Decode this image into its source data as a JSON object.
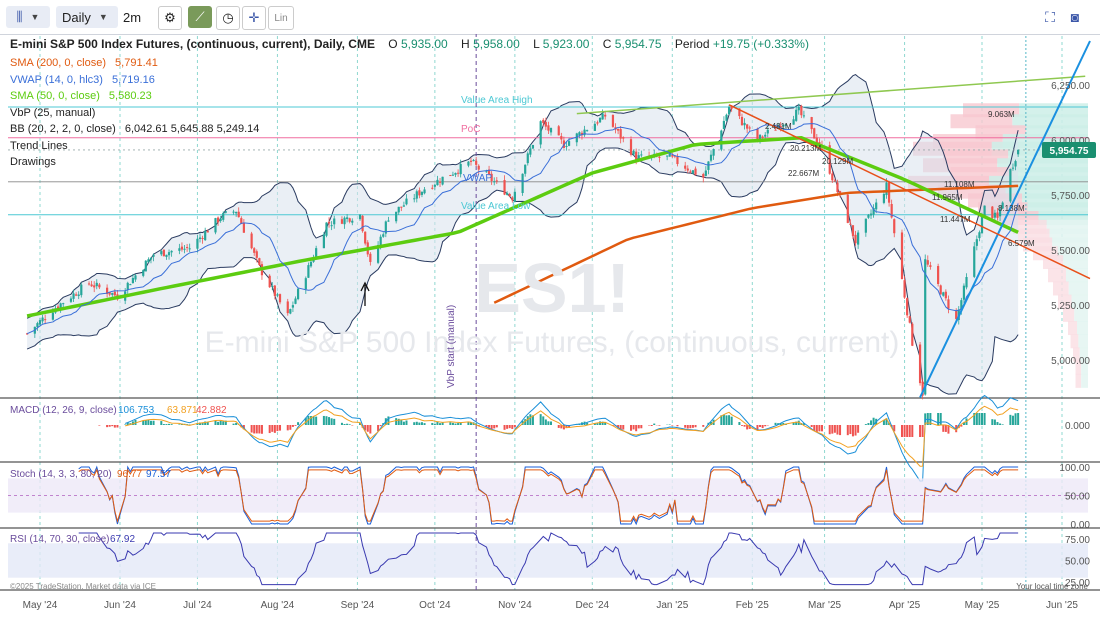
{
  "toolbar": {
    "period": "Daily",
    "interval": "2m",
    "lin_label": "Lin"
  },
  "header": {
    "title": "E-mini S&P 500 Index Futures, (continuous, current), Daily, CME",
    "open_label": "O",
    "open": "5,935.00",
    "high_label": "H",
    "high": "5,958.00",
    "low_label": "L",
    "low": "5,923.00",
    "close_label": "C",
    "close": "5,954.75",
    "period_label": "Period",
    "change": "+19.75 (+0.333%)"
  },
  "legend": [
    {
      "label": "SMA (200, 0, close)",
      "value": "5,791.41",
      "color": "#e05a10"
    },
    {
      "label": "VWAP (14, 0, hlc3)",
      "value": "5,719.16",
      "color": "#3a6fd8"
    },
    {
      "label": "SMA (50, 0, close)",
      "value": "5,580.23",
      "color": "#5ccc10"
    },
    {
      "label": "VbP (25, manual)",
      "value": "",
      "color": "#222222"
    },
    {
      "label": "BB (20, 2, 2, 0, close)",
      "value": "6,042.61 5,645.88 5,249.14",
      "color": "#222222"
    },
    {
      "label": "Trend Lines",
      "value": "",
      "color": "#222222"
    },
    {
      "label": "Drawings",
      "value": "",
      "color": "#222222"
    }
  ],
  "watermark": {
    "symbol": "ES1!",
    "name": "E-mini S&P 500 Index Futures, (continuous, current)"
  },
  "annotations": {
    "value_area_high": "Value Area High",
    "poc": "PoC",
    "value_area_low": "Value Area Low",
    "vbp_start": "VbP start (manual)",
    "vwap_short": "VWAP"
  },
  "vbp_labels": [
    "9.063M",
    "20.213M",
    "20.129M",
    "22.667M",
    "11.108M",
    "11.965M",
    "8.138M",
    "11.447M",
    "6.579M",
    "2.481M"
  ],
  "price_axis": {
    "ticks": [
      "6,250.00",
      "6,000.00",
      "5,750.00",
      "5,500.00",
      "5,250.00",
      "5,000.00"
    ],
    "current": "5,954.75"
  },
  "x_axis": {
    "ticks": [
      "May '24",
      "Jun '24",
      "Jul '24",
      "Aug '24",
      "Sep '24",
      "Oct '24",
      "Nov '24",
      "Dec '24",
      "Jan '25",
      "Feb '25",
      "Mar '25",
      "Apr '25",
      "May '25",
      "Jun '25"
    ]
  },
  "panels": {
    "macd": {
      "label": "MACD (12, 26, 9, close)",
      "values": [
        "106.753",
        "63.871",
        "42.882"
      ],
      "colors": [
        "#1a8fd8",
        "#f2a020",
        "#ef5350"
      ],
      "ticks": [
        "0.000"
      ]
    },
    "stoch": {
      "label": "Stoch (14, 3, 3, 80, 20)",
      "values": [
        "96.77",
        "97.57"
      ],
      "colors": [
        "#1a5fd8",
        "#e05a10"
      ],
      "ticks": [
        "100.00",
        "50.00",
        "0.00"
      ]
    },
    "rsi": {
      "label": "RSI (14, 70, 30, close)",
      "value": "67.92",
      "color": "#3a3ab0",
      "ticks": [
        "75.00",
        "50.00",
        "25.00"
      ]
    }
  },
  "footer": {
    "copyright": "©2025 TradeStation. Market data via ICE",
    "local_time": "Your local time zone"
  },
  "colors": {
    "up": "#26a69a",
    "down": "#ef5350",
    "sma200": "#e05a10",
    "sma50": "#5ccc10",
    "vwap": "#3a6fd8",
    "bb": "#2a3b60",
    "value_area": "#4cc8d4",
    "poc": "#f06ea0",
    "trend_long": "#8fc850",
    "trend_up": "#1a90e0",
    "trend_down": "#e8501a"
  },
  "chart_data": {
    "type": "candlestick",
    "symbol": "ES1!",
    "timeframe": "Daily",
    "y_range": [
      4800,
      6400
    ],
    "x_range": [
      "2024-04-25",
      "2025-06-10"
    ],
    "last": {
      "open": 5935.0,
      "high": 5958.0,
      "low": 5923.0,
      "close": 5954.75,
      "change": 19.75,
      "change_pct": 0.333
    },
    "close_path": [
      [
        "2024-04-26",
        5120
      ],
      [
        "2024-05-06",
        5230
      ],
      [
        "2024-05-20",
        5350
      ],
      [
        "2024-05-31",
        5290
      ],
      [
        "2024-06-14",
        5480
      ],
      [
        "2024-06-28",
        5510
      ],
      [
        "2024-07-10",
        5650
      ],
      [
        "2024-07-16",
        5680
      ],
      [
        "2024-07-25",
        5420
      ],
      [
        "2024-08-05",
        5200
      ],
      [
        "2024-08-12",
        5390
      ],
      [
        "2024-08-20",
        5620
      ],
      [
        "2024-09-02",
        5660
      ],
      [
        "2024-09-06",
        5430
      ],
      [
        "2024-09-13",
        5650
      ],
      [
        "2024-09-27",
        5780
      ],
      [
        "2024-10-15",
        5900
      ],
      [
        "2024-10-31",
        5740
      ],
      [
        "2024-11-11",
        6080
      ],
      [
        "2024-11-20",
        5980
      ],
      [
        "2024-12-06",
        6110
      ],
      [
        "2024-12-18",
        5920
      ],
      [
        "2024-12-31",
        5920
      ],
      [
        "2025-01-13",
        5830
      ],
      [
        "2025-01-23",
        6150
      ],
      [
        "2025-02-03",
        6000
      ],
      [
        "2025-02-19",
        6130
      ],
      [
        "2025-02-28",
        5960
      ],
      [
        "2025-03-13",
        5540
      ],
      [
        "2025-03-25",
        5790
      ],
      [
        "2025-04-04",
        5080
      ],
      [
        "2025-04-08",
        4850
      ],
      [
        "2025-04-09",
        5450
      ],
      [
        "2025-04-21",
        5180
      ],
      [
        "2025-05-02",
        5690
      ],
      [
        "2025-05-07",
        5640
      ],
      [
        "2025-05-12",
        5860
      ],
      [
        "2025-05-15",
        5954.75
      ]
    ],
    "sma200": [
      [
        "2024-10-24",
        5260
      ],
      [
        "2024-12-15",
        5550
      ],
      [
        "2025-02-01",
        5690
      ],
      [
        "2025-03-10",
        5760
      ],
      [
        "2025-05-15",
        5791.41
      ]
    ],
    "sma50": [
      [
        "2024-04-26",
        5200
      ],
      [
        "2024-06-15",
        5320
      ],
      [
        "2024-08-10",
        5450
      ],
      [
        "2024-10-10",
        5580
      ],
      [
        "2024-12-01",
        5850
      ],
      [
        "2025-01-10",
        5980
      ],
      [
        "2025-02-20",
        6010
      ],
      [
        "2025-04-01",
        5820
      ],
      [
        "2025-05-15",
        5580.23
      ]
    ],
    "bb_last": {
      "upper": 6042.61,
      "middle": 5645.88,
      "lower": 5249.14
    },
    "vwap_last": 5719.16,
    "value_area": {
      "high": 6150,
      "poc": 6010,
      "low": 5660
    },
    "vbp_start": "2024-10-17",
    "macd_last": {
      "macd": 106.753,
      "signal": 63.871,
      "hist": 42.882
    },
    "stoch_last": {
      "k": 96.77,
      "d": 97.57
    },
    "rsi_last": 67.92
  }
}
